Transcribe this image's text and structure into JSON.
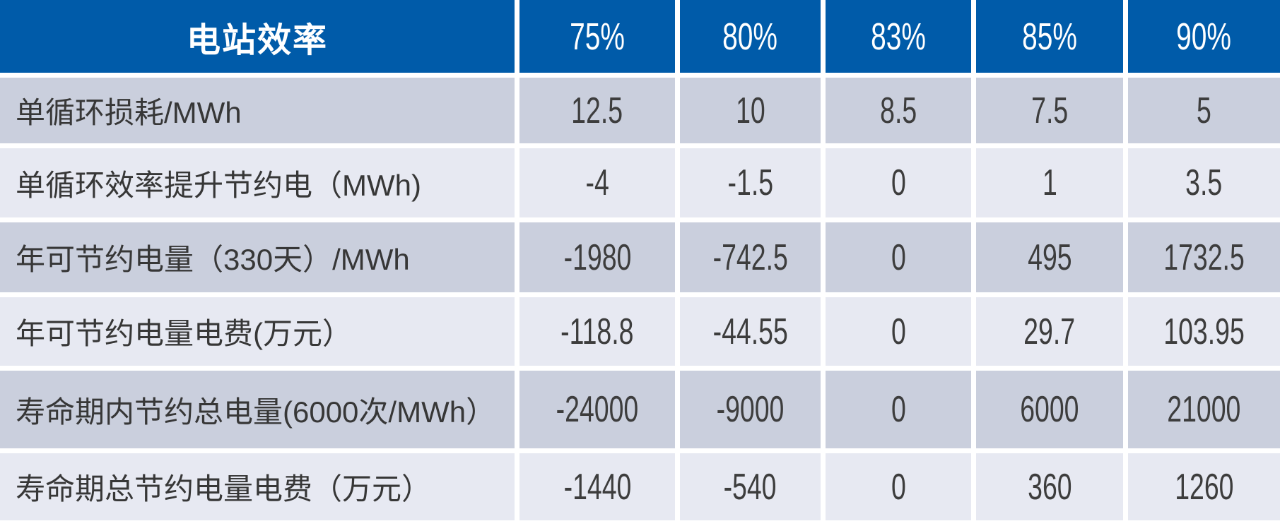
{
  "chart_data": {
    "type": "table",
    "columns": [
      "电站效率",
      "75%",
      "80%",
      "83%",
      "85%",
      "90%"
    ],
    "rows": [
      {
        "label": "单循环损耗/MWh",
        "values": [
          12.5,
          10,
          8.5,
          7.5,
          5
        ]
      },
      {
        "label": "单循环效率提升节约电（MWh)",
        "values": [
          -4,
          -1.5,
          0,
          1,
          3.5
        ]
      },
      {
        "label": "年可节约电量（330天）/MWh",
        "values": [
          -1980,
          -742.5,
          0,
          495,
          1732.5
        ]
      },
      {
        "label": "年可节约电量电费(万元）",
        "values": [
          -118.8,
          -44.55,
          0,
          29.7,
          103.95
        ]
      },
      {
        "label": "寿命期内节约总电量(6000次/MWh）",
        "values": [
          -24000,
          -9000,
          0,
          6000,
          21000
        ]
      },
      {
        "label": "寿命期总节约电量电费（万元）",
        "values": [
          -1440,
          -540,
          0,
          360,
          1260
        ]
      }
    ],
    "layout": {
      "header_position": "top",
      "stripe_pattern": "alternating",
      "grid": "white-gaps"
    }
  },
  "colors": {
    "header_bg": "#005BA9",
    "header_text": "#FFFFFF",
    "row_dark_bg": "#CACFDD",
    "row_light_bg": "#E7E9F2",
    "cell_text": "#3D3D3D",
    "separator": "#FFFFFF"
  }
}
